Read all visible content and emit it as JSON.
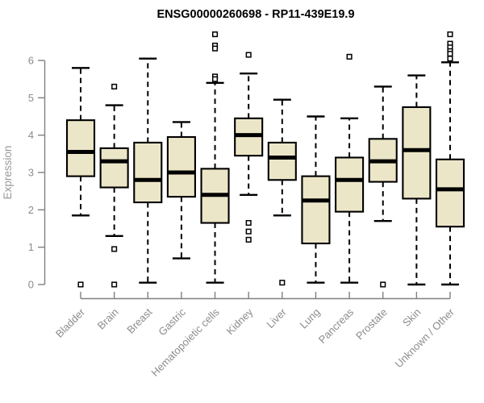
{
  "title": "ENSG00000260698 - RP11-439E19.9",
  "colors": {
    "box_fill": "#ece6c8",
    "box_stroke": "#000000",
    "median": "#000000",
    "axis_line": "#808080",
    "tick_label": "#8c8c8c",
    "title_color": "#000000",
    "outlier_fill": "#ffffff"
  },
  "chart_data": {
    "type": "box",
    "title": "ENSG00000260698 - RP11-439E19.9",
    "xlabel": "",
    "ylabel": "Expression",
    "ylim": [
      0,
      6.8
    ],
    "yticks": [
      0,
      1,
      2,
      3,
      4,
      5,
      6
    ],
    "grid": false,
    "legend": "none",
    "categories": [
      "Bladder",
      "Brain",
      "Breast",
      "Gastric",
      "Hematopoietic cells",
      "Kidney",
      "Liver",
      "Lung",
      "Pancreas",
      "Prostate",
      "Skin",
      "Unknown / Other"
    ],
    "series": [
      {
        "name": "Bladder",
        "whisker_low": 1.85,
        "q1": 2.9,
        "median": 3.55,
        "q3": 4.4,
        "whisker_high": 5.8,
        "outliers": [
          0.0
        ]
      },
      {
        "name": "Brain",
        "whisker_low": 1.3,
        "q1": 2.6,
        "median": 3.3,
        "q3": 3.65,
        "whisker_high": 4.8,
        "outliers": [
          5.3,
          0.95,
          0.0
        ]
      },
      {
        "name": "Breast",
        "whisker_low": 0.05,
        "q1": 2.2,
        "median": 2.8,
        "q3": 3.8,
        "whisker_high": 6.05,
        "outliers": []
      },
      {
        "name": "Gastric",
        "whisker_low": 0.7,
        "q1": 2.35,
        "median": 3.0,
        "q3": 3.95,
        "whisker_high": 4.35,
        "outliers": []
      },
      {
        "name": "Hematopoietic cells",
        "whisker_low": 0.05,
        "q1": 1.65,
        "median": 2.4,
        "q3": 3.1,
        "whisker_high": 5.4,
        "outliers": [
          6.7,
          6.4,
          6.32,
          5.57,
          5.5
        ]
      },
      {
        "name": "Kidney",
        "whisker_low": 2.4,
        "q1": 3.45,
        "median": 4.0,
        "q3": 4.45,
        "whisker_high": 5.65,
        "outliers": [
          6.15,
          1.65,
          1.42,
          1.2
        ]
      },
      {
        "name": "Liver",
        "whisker_low": 1.85,
        "q1": 2.8,
        "median": 3.4,
        "q3": 3.8,
        "whisker_high": 4.95,
        "outliers": [
          0.05
        ]
      },
      {
        "name": "Lung",
        "whisker_low": 0.05,
        "q1": 1.1,
        "median": 2.25,
        "q3": 2.9,
        "whisker_high": 4.5,
        "outliers": []
      },
      {
        "name": "Pancreas",
        "whisker_low": 0.05,
        "q1": 1.95,
        "median": 2.8,
        "q3": 3.4,
        "whisker_high": 4.45,
        "outliers": [
          6.1
        ]
      },
      {
        "name": "Prostate",
        "whisker_low": 1.7,
        "q1": 2.75,
        "median": 3.3,
        "q3": 3.9,
        "whisker_high": 5.3,
        "outliers": [
          0.0
        ]
      },
      {
        "name": "Skin",
        "whisker_low": 0.0,
        "q1": 2.3,
        "median": 3.6,
        "q3": 4.75,
        "whisker_high": 5.6,
        "outliers": []
      },
      {
        "name": "Unknown / Other",
        "whisker_low": 0.0,
        "q1": 1.55,
        "median": 2.55,
        "q3": 3.35,
        "whisker_high": 5.95,
        "outliers": [
          6.7,
          6.45,
          6.35,
          6.25,
          6.18,
          6.05
        ]
      }
    ]
  }
}
